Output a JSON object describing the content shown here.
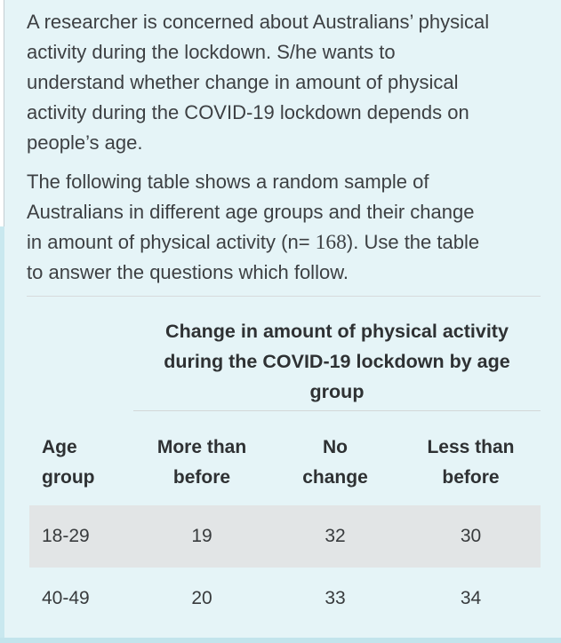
{
  "question": {
    "p1": {
      "lines": [
        "A researcher is concerned about Australians’ physical",
        "activity during the lockdown. S/he wants to",
        "understand whether change in amount of physical",
        "activity during the COVID-19 lockdown depends on",
        "people’s age."
      ]
    },
    "p2": {
      "line1": "The following table shows a random sample of",
      "line2": "Australians in different age groups and their change",
      "line3_pre": "in amount of physical activity (n= ",
      "line3_n": "168",
      "line3_post": "). Use the table",
      "line4": "to answer the questions which follow."
    },
    "sample_size": "168"
  },
  "table": {
    "title_lines": [
      "Change in amount of physical activity",
      "during the COVID-19 lockdown by age",
      "group"
    ],
    "columns": [
      {
        "line1": "Age",
        "line2": "group"
      },
      {
        "line1": "More than",
        "line2": "before"
      },
      {
        "line1": "No",
        "line2": "change"
      },
      {
        "line1": "Less than",
        "line2": "before"
      }
    ],
    "rows": [
      {
        "age_group": "18-29",
        "more_than_before": "19",
        "no_change": "32",
        "less_than_before": "30"
      },
      {
        "age_group": "40-49",
        "more_than_before": "20",
        "no_change": "33",
        "less_than_before": "34"
      }
    ]
  },
  "chart_data": {
    "type": "table",
    "title": "Change in amount of physical activity during the COVID-19 lockdown by age group",
    "columns": [
      "Age group",
      "More than before",
      "No change",
      "Less than before"
    ],
    "rows": [
      [
        "18-29",
        19,
        32,
        30
      ],
      [
        "40-49",
        20,
        33,
        34
      ]
    ],
    "n": 168
  },
  "colors": {
    "page_background": "#e5f4f7",
    "shaded_row": "#e2e5e6",
    "divider": "#d3d7d8",
    "text": "#3d4043",
    "edge_strip": "#c9e8ef"
  }
}
